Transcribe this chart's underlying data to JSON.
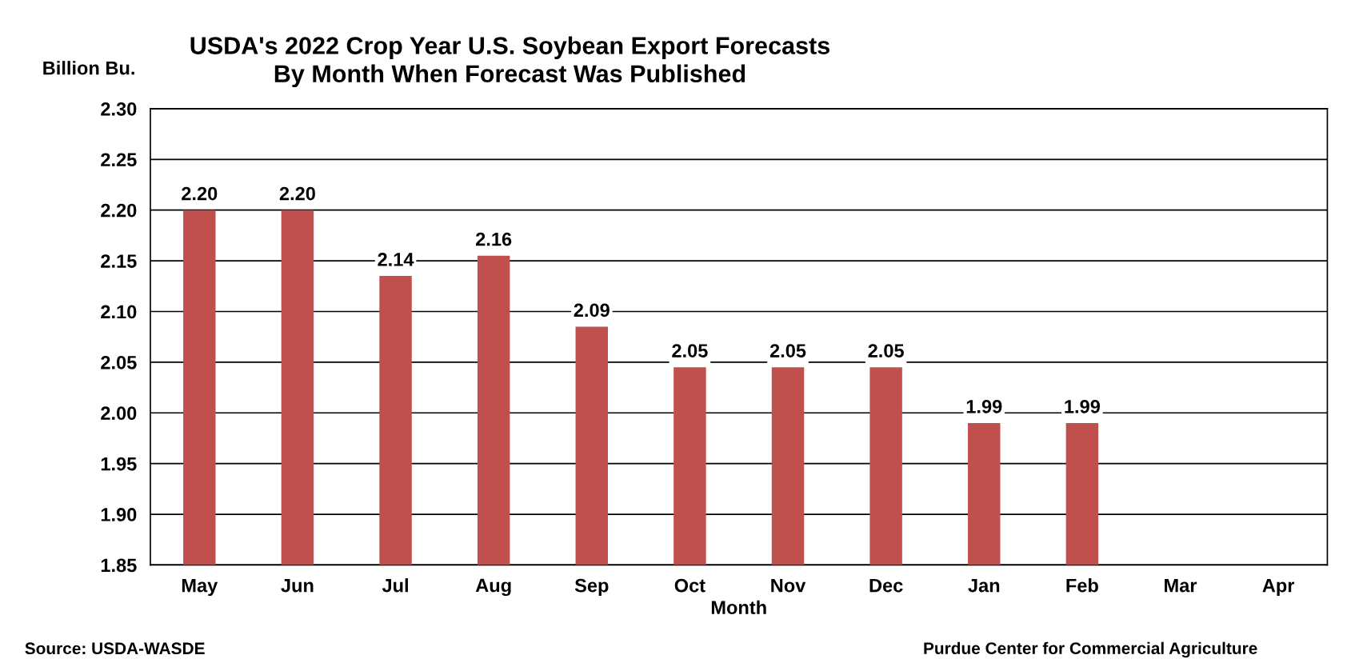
{
  "chart_data": {
    "type": "bar",
    "title": "USDA's 2022 Crop Year U.S. Soybean Export Forecasts\nBy Month When Forecast Was Published",
    "ylabel": "Billion Bu.",
    "xlabel": "Month",
    "categories": [
      "May",
      "Jun",
      "Jul",
      "Aug",
      "Sep",
      "Oct",
      "Nov",
      "Dec",
      "Jan",
      "Feb",
      "Mar",
      "Apr"
    ],
    "values": [
      2.2,
      2.2,
      2.135,
      2.155,
      2.085,
      2.045,
      2.045,
      2.045,
      1.99,
      1.99,
      null,
      null
    ],
    "value_labels": [
      "2.20",
      "2.20",
      "2.14",
      "2.16",
      "2.09",
      "2.05",
      "2.05",
      "2.05",
      "1.99",
      "1.99",
      null,
      null
    ],
    "color": "#c0504d",
    "ylim": [
      1.85,
      2.3
    ],
    "yticks": [
      {
        "value": 1.85,
        "label": "1.85"
      },
      {
        "value": 1.9,
        "label": "1.90"
      },
      {
        "value": 1.95,
        "label": "1.95"
      },
      {
        "value": 2.0,
        "label": "2.00"
      },
      {
        "value": 2.05,
        "label": "2.05"
      },
      {
        "value": 2.1,
        "label": "2.10"
      },
      {
        "value": 2.15,
        "label": "2.15"
      },
      {
        "value": 2.2,
        "label": "2.20"
      },
      {
        "value": 2.25,
        "label": "2.25"
      },
      {
        "value": 2.3,
        "label": "2.30"
      }
    ],
    "grid": "y",
    "annotations": [
      "Source: USDA-WASDE",
      "Purdue Center for Commercial Agriculture"
    ]
  }
}
